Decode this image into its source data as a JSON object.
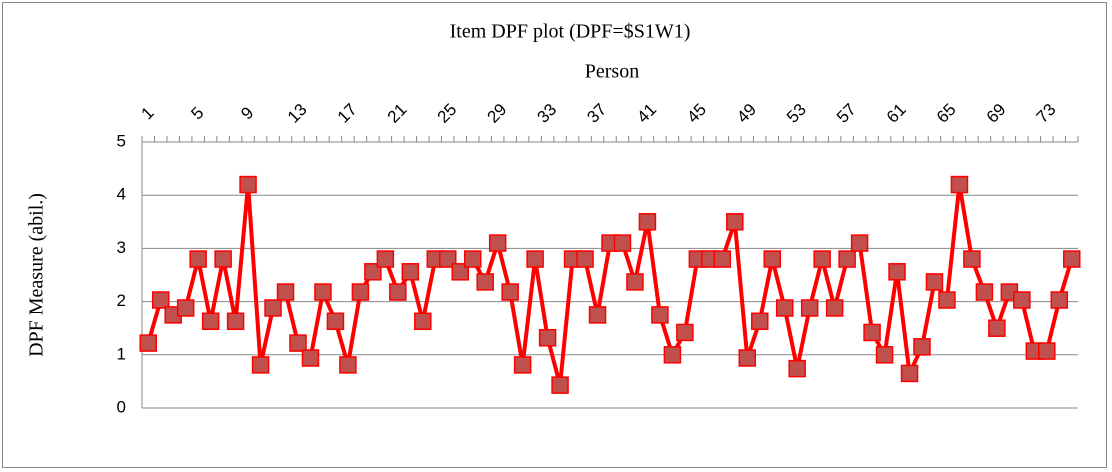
{
  "chart_data": {
    "type": "line",
    "title": "Item DPF plot (DPF=$S1W1)",
    "x_label": "Person",
    "y_label": "DPF Measure (abil.)",
    "categories": [
      "1",
      null,
      null,
      null,
      "5",
      null,
      null,
      null,
      "9",
      null,
      null,
      null,
      "13",
      null,
      null,
      null,
      "17",
      null,
      null,
      null,
      "21",
      null,
      null,
      null,
      "25",
      null,
      null,
      null,
      "29",
      null,
      null,
      null,
      "33",
      null,
      null,
      null,
      "37",
      null,
      null,
      null,
      "41",
      null,
      null,
      null,
      "45",
      null,
      null,
      null,
      "49",
      null,
      null,
      null,
      "53",
      null,
      null,
      null,
      "57",
      null,
      null,
      null,
      "61",
      null,
      null,
      null,
      "65",
      null,
      null,
      null,
      "69",
      null,
      null,
      null,
      "73",
      null,
      null
    ],
    "series": [
      {
        "color": "#ff0000",
        "marker_color": "#c0504d",
        "values": [
          1.22,
          2.03,
          1.75,
          1.88,
          2.8,
          1.63,
          2.8,
          1.63,
          4.2,
          0.81,
          1.88,
          2.18,
          1.22,
          0.94,
          2.18,
          1.63,
          0.81,
          2.18,
          2.56,
          2.8,
          2.18,
          2.56,
          1.63,
          2.8,
          2.8,
          2.56,
          2.8,
          2.37,
          3.1,
          2.18,
          0.81,
          2.8,
          1.32,
          0.43,
          2.8,
          2.8,
          1.75,
          3.1,
          3.1,
          2.37,
          3.5,
          1.75,
          1.0,
          1.42,
          2.8,
          2.8,
          2.8,
          3.5,
          0.94,
          1.63,
          2.8,
          1.88,
          0.74,
          1.88,
          2.8,
          1.88,
          2.8,
          3.1,
          1.42,
          1.0,
          2.56,
          0.65,
          1.15,
          2.37,
          2.03,
          4.2,
          2.8,
          2.18,
          1.5,
          2.18,
          2.03,
          1.07,
          1.07,
          2.03,
          2.8
        ]
      }
    ],
    "ylim": [
      0,
      5
    ],
    "yticks": [
      0,
      1,
      2,
      3,
      4,
      5
    ],
    "grid": true
  }
}
